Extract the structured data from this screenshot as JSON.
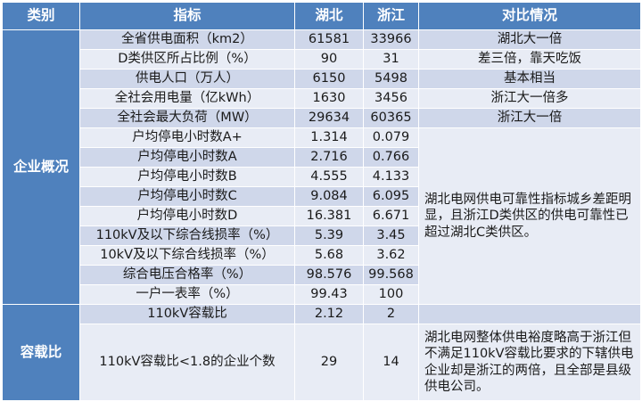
{
  "header": {
    "category": "类别",
    "indicator": "指标",
    "hubei": "湖北",
    "zhejiang": "浙江",
    "comparison": "对比情况"
  },
  "sections": {
    "enterprise": "企业概况",
    "capacity": "容载比"
  },
  "rows": [
    {
      "indicator": "全省供电面积（km2）",
      "hubei": "61581",
      "zhejiang": "33966",
      "comparison": "湖北大一倍"
    },
    {
      "indicator": "D类供区所占比例（%）",
      "hubei": "90",
      "zhejiang": "31",
      "comparison": "差三倍，靠天吃饭"
    },
    {
      "indicator": "供电人口（万人）",
      "hubei": "6150",
      "zhejiang": "5498",
      "comparison": "基本相当"
    },
    {
      "indicator": "全社会用电量（亿kWh）",
      "hubei": "1630",
      "zhejiang": "3456",
      "comparison": "浙江大一倍多"
    },
    {
      "indicator": "全社会最大负荷（MW）",
      "hubei": "29634",
      "zhejiang": "60365",
      "comparison": "浙江大一倍"
    },
    {
      "indicator": "户均停电小时数A+",
      "hubei": "1.314",
      "zhejiang": "0.079"
    },
    {
      "indicator": "户均停电小时数A",
      "hubei": "2.716",
      "zhejiang": "0.766"
    },
    {
      "indicator": "户均停电小时数B",
      "hubei": "4.555",
      "zhejiang": "4.133"
    },
    {
      "indicator": "户均停电小时数C",
      "hubei": "9.084",
      "zhejiang": "6.095"
    },
    {
      "indicator": "户均停电小时数D",
      "hubei": "16.381",
      "zhejiang": "6.671"
    },
    {
      "indicator": "110kV及以下综合线损率（%）",
      "hubei": "5.39",
      "zhejiang": "3.45"
    },
    {
      "indicator": "10kV及以下综合线损率（%）",
      "hubei": "5.68",
      "zhejiang": "3.62"
    },
    {
      "indicator": "综合电压合格率（%）",
      "hubei": "98.576",
      "zhejiang": "99.568"
    },
    {
      "indicator": "一户一表率（%）",
      "hubei": "99.43",
      "zhejiang": "100"
    },
    {
      "indicator": "110kV容载比",
      "hubei": "2.12",
      "zhejiang": "2"
    },
    {
      "indicator": "110kV容载比<1.8的企业个数",
      "hubei": "29",
      "zhejiang": "14"
    }
  ],
  "notes": {
    "reliability": "湖北电网供电可靠性指标城乡差距明显，且浙江D类供区的供电可靠性已超过湖北C类供区。",
    "capacity": "湖北电网整体供电裕度略高于浙江但不满足110kV容载比要求的下辖供电企业却是浙江的两倍，且全部是县级供电公司。"
  }
}
